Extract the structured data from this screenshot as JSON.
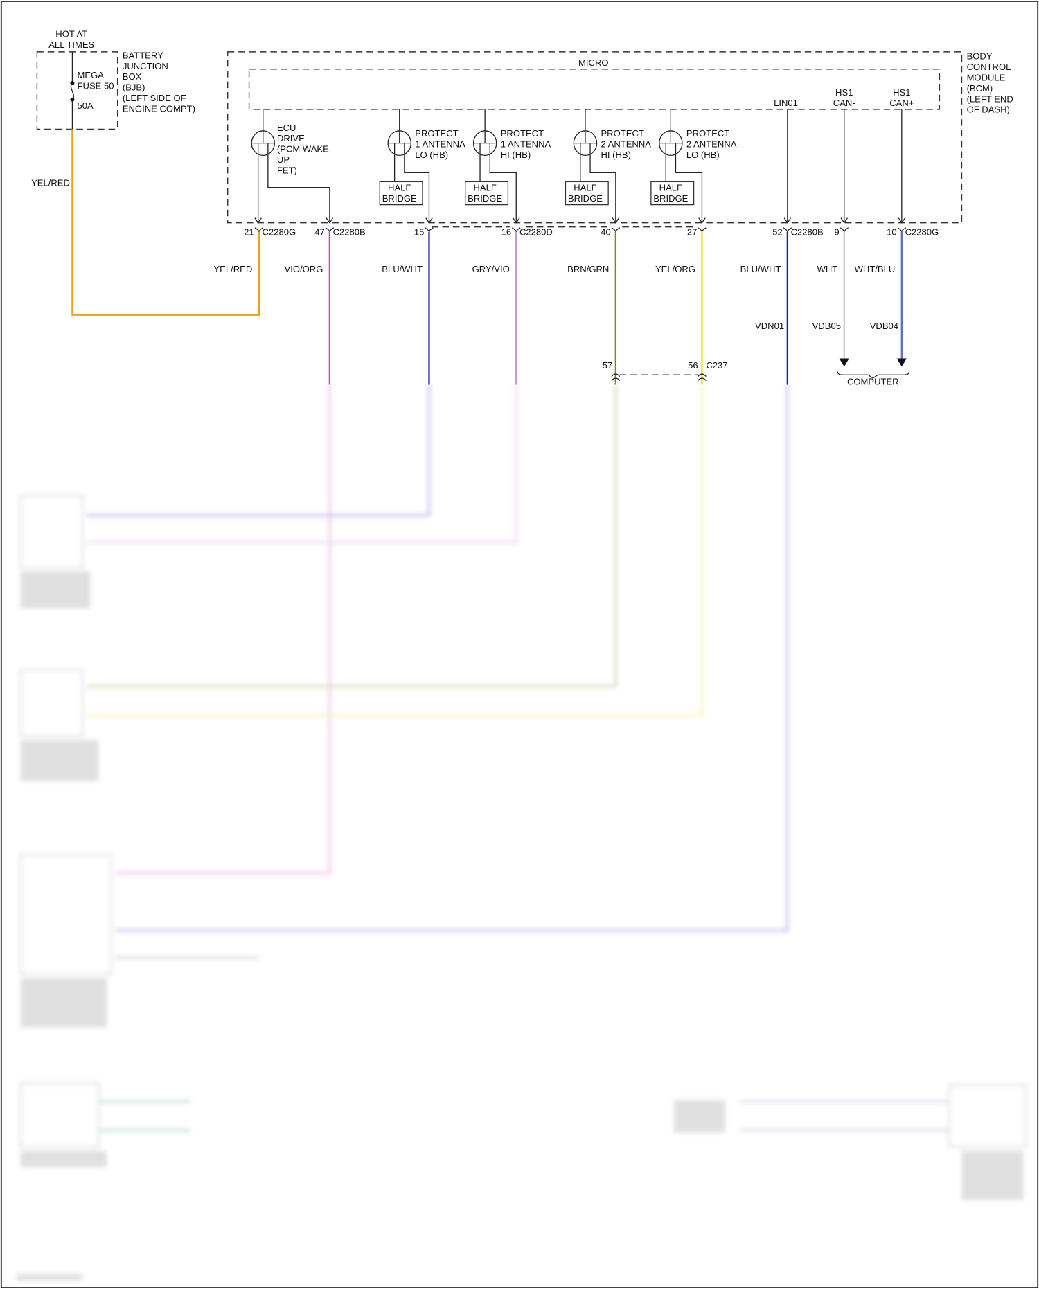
{
  "power": {
    "line1": "HOT AT",
    "line2": "ALL TIMES"
  },
  "bjb": {
    "fuse_label": [
      "MEGA",
      "FUSE 50",
      "50A"
    ],
    "name": [
      "BATTERY",
      "JUNCTION",
      "BOX",
      "(BJB)",
      "(LEFT SIDE OF",
      "ENGINE COMPT)"
    ],
    "wire_color": "YEL/RED"
  },
  "bcm": {
    "name": [
      "BODY",
      "CONTROL",
      "MODULE",
      "(BCM)",
      "(LEFT END",
      "OF DASH)"
    ],
    "micro": "MICRO",
    "ecu": [
      "ECU",
      "DRIVE",
      "(PCM WAKE",
      "UP",
      "FET)"
    ],
    "protect": [
      [
        "PROTECT",
        "1 ANTENNA",
        "LO (HB)"
      ],
      [
        "PROTECT",
        "1 ANTENNA",
        "HI (HB)"
      ],
      [
        "PROTECT",
        "2 ANTENNA",
        "HI (HB)"
      ],
      [
        "PROTECT",
        "2 ANTENNA",
        "LO (HB)"
      ]
    ],
    "half_bridge": [
      "HALF",
      "BRIDGE"
    ],
    "signals": {
      "lin": "LIN01",
      "can_lo": [
        "HS1",
        "CAN-"
      ],
      "can_hi": [
        "HS1",
        "CAN+"
      ]
    }
  },
  "pins": [
    {
      "pin": "21",
      "connector": "C2280G",
      "wire": "YEL/RED",
      "color": "#e8a317"
    },
    {
      "pin": "47",
      "connector": "C2280B",
      "wire": "VIO/ORG",
      "color": "#e040b0"
    },
    {
      "pin": "15",
      "connector": "",
      "wire": "BLU/WHT",
      "color": "#3535c8"
    },
    {
      "pin": "16",
      "connector": "C2280D",
      "wire": "GRY/VIO",
      "color": "#c890d8"
    },
    {
      "pin": "40",
      "connector": "",
      "wire": "BRN/GRN",
      "color": "#7a8a10"
    },
    {
      "pin": "27",
      "connector": "",
      "wire": "YEL/ORG",
      "color": "#e8e020"
    },
    {
      "pin": "52",
      "connector": "C2280B",
      "wire": "BLU/WHT",
      "color": "#2020b0",
      "circuit": "VDN01"
    },
    {
      "pin": "9",
      "connector": "",
      "wire": "WHT",
      "color": "#cccccc",
      "circuit": "VDB05"
    },
    {
      "pin": "10",
      "connector": "C2280G",
      "wire": "WHT/BLU",
      "color": "#6070c0",
      "circuit": "VDB04"
    }
  ],
  "c237": {
    "name": "C237",
    "pins": [
      "57",
      "56"
    ]
  },
  "computer_label": "COMPUTER"
}
